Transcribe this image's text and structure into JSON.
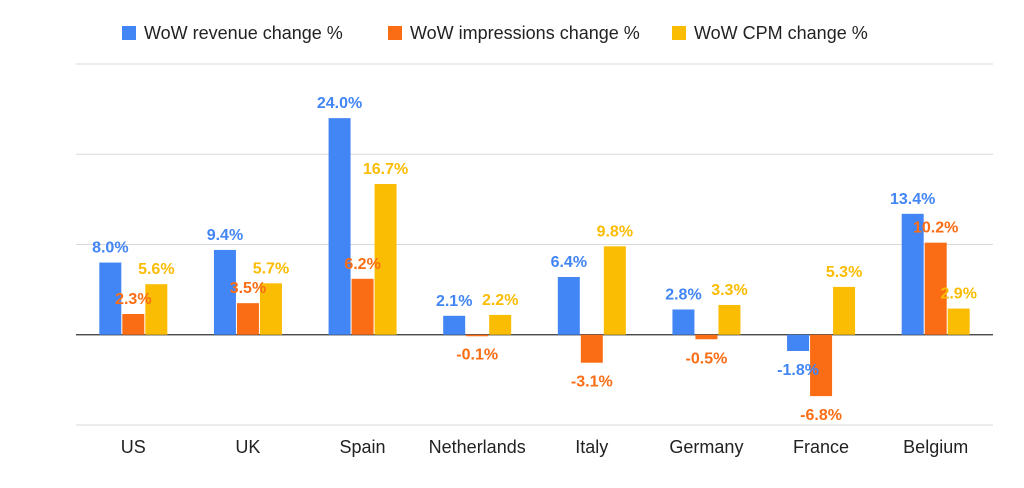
{
  "chart_data": {
    "type": "bar",
    "categories": [
      "US",
      "UK",
      "Spain",
      "Netherlands",
      "Italy",
      "Germany",
      "France",
      "Belgium"
    ],
    "series": [
      {
        "name": "WoW revenue change %",
        "color": "#4285f4",
        "values": [
          8.0,
          9.4,
          24.0,
          2.1,
          6.4,
          2.8,
          -1.8,
          13.4
        ],
        "labels": [
          "8.0%",
          "9.4%",
          "24.0%",
          "2.1%",
          "6.4%",
          "2.8%",
          "-1.8%",
          "13.4%"
        ]
      },
      {
        "name": "WoW impressions change %",
        "color": "#fa6d15",
        "values": [
          2.3,
          3.5,
          6.2,
          -0.1,
          -3.1,
          -0.5,
          -6.8,
          10.2
        ],
        "labels": [
          "2.3%",
          "3.5%",
          "6.2%",
          "-0.1%",
          "-3.1%",
          "-0.5%",
          "-6.8%",
          "10.2%"
        ]
      },
      {
        "name": "WoW CPM change %",
        "color": "#fbbc04",
        "values": [
          5.6,
          5.7,
          16.7,
          2.2,
          9.8,
          3.3,
          5.3,
          2.9
        ],
        "labels": [
          "5.6%",
          "5.7%",
          "16.7%",
          "2.2%",
          "9.8%",
          "3.3%",
          "5.3%",
          "2.9%"
        ]
      }
    ],
    "ylim": [
      -10,
      30
    ],
    "gridlines": [
      -10,
      0,
      10,
      20,
      30
    ],
    "grid": true,
    "legend": "top-center",
    "title": "",
    "xlabel": "",
    "ylabel": ""
  }
}
